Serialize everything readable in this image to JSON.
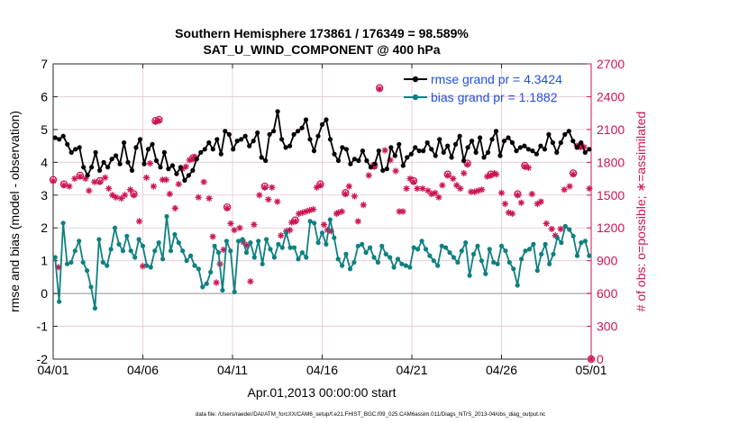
{
  "chart_data": {
    "type": "line",
    "title_line1": "Southern Hemisphere 173861 / 176349 = 98.589%",
    "title_line2": "SAT_U_WIND_COMPONENT @ 400 hPa",
    "ylabel_left": "rmse and bias (model - observation)",
    "ylabel_right": "# of obs: o=possible; ∗=assimilated",
    "xlabel": "Apr.01,2013 00:00:00 start",
    "footer": "data file: /Users/raeder/DAI/ATM_forcXX/CAM6_setup/f.e21.FHIST_BGC.f09_025.CAM6assim.011/Diags_NTrS_2013-04/obs_diag_output.nc",
    "xlim": [
      0,
      30
    ],
    "ylim_left": [
      -2,
      7
    ],
    "ylim_right": [
      0,
      2700
    ],
    "x_tick_values": [
      0,
      5,
      10,
      15,
      20,
      25,
      30
    ],
    "x_tick_labels": [
      "04/01",
      "04/06",
      "04/11",
      "04/16",
      "04/21",
      "04/26",
      "05/01"
    ],
    "y_left_ticks": [
      -2,
      -1,
      0,
      1,
      2,
      3,
      4,
      5,
      6,
      7
    ],
    "y_right_ticks": [
      0,
      300,
      600,
      900,
      1200,
      1500,
      1800,
      2100,
      2400,
      2700
    ],
    "colors": {
      "rmse": "#000000",
      "bias": "#0f8080",
      "obs": "#cc1454",
      "legend_text": "#1f4fe0",
      "zero_line": "#b4b4b4",
      "grid": "#e3c4d2"
    },
    "series": [
      {
        "name": "rmse grand pr = 4.3424",
        "values": [
          4.75,
          4.7,
          4.8,
          4.55,
          4.3,
          4.4,
          4.45,
          3.85,
          3.6,
          3.85,
          4.3,
          3.75,
          4.0,
          3.85,
          4.1,
          4.2,
          3.95,
          4.6,
          4.0,
          3.75,
          4.45,
          4.7,
          3.95,
          4.4,
          4.55,
          4.05,
          3.85,
          4.3,
          3.8,
          3.9,
          3.65,
          3.85,
          3.45,
          3.6,
          3.75,
          4.1,
          4.3,
          4.4,
          4.6,
          4.4,
          4.7,
          4.25,
          4.95,
          4.85,
          4.4,
          4.65,
          4.7,
          4.8,
          4.5,
          4.65,
          4.9,
          4.15,
          4.05,
          4.85,
          4.95,
          5.55,
          4.7,
          4.45,
          4.5,
          4.85,
          4.95,
          5.05,
          5.3,
          4.7,
          4.35,
          4.8,
          5.15,
          5.3,
          4.7,
          4.25,
          4.05,
          4.45,
          4.4,
          3.95,
          4.1,
          4.05,
          4.35,
          4.05,
          3.85,
          3.95,
          4.35,
          3.75,
          3.8,
          4.45,
          4.2,
          4.55,
          3.9,
          4.15,
          4.25,
          4.45,
          4.35,
          4.35,
          4.6,
          4.4,
          4.2,
          4.7,
          4.3,
          4.5,
          4.15,
          4.55,
          4.8,
          4.05,
          4.45,
          4.65,
          4.3,
          4.75,
          4.15,
          4.3,
          4.7,
          4.95,
          4.2,
          4.65,
          4.75,
          4.6,
          4.35,
          4.45,
          4.5,
          4.4,
          4.35,
          4.25,
          4.5,
          4.4,
          4.85,
          4.6,
          4.3,
          4.6,
          4.85,
          4.95,
          4.65,
          4.45,
          4.6,
          4.3,
          4.4
        ]
      },
      {
        "name": "bias grand pr = 1.1882",
        "values": [
          1.1,
          -0.25,
          2.15,
          0.9,
          0.95,
          1.3,
          1.6,
          0.95,
          0.7,
          0.2,
          -0.45,
          1.65,
          0.95,
          0.85,
          1.35,
          2.0,
          1.5,
          1.3,
          1.75,
          1.3,
          1.1,
          1.65,
          1.45,
          0.85,
          0.8,
          1.3,
          1.55,
          1.05,
          2.35,
          1.3,
          1.8,
          1.55,
          1.3,
          1.0,
          1.15,
          0.85,
          0.75,
          0.2,
          0.3,
          0.65,
          1.45,
          1.25,
          0.1,
          1.6,
          1.3,
          0.05,
          1.6,
          1.65,
          1.25,
          1.55,
          1.1,
          1.6,
          0.9,
          1.65,
          1.35,
          1.1,
          1.5,
          1.4,
          1.85,
          1.4,
          1.4,
          1.05,
          1.25,
          1.1,
          2.2,
          2.15,
          1.55,
          1.85,
          1.5,
          2.25,
          1.7,
          1.05,
          0.85,
          1.2,
          0.75,
          0.95,
          1.45,
          1.5,
          1.25,
          1.4,
          1.1,
          0.95,
          1.45,
          1.2,
          1.1,
          0.8,
          1.05,
          0.9,
          0.85,
          0.8,
          1.4,
          1.35,
          1.6,
          1.35,
          1.15,
          1.0,
          0.85,
          1.45,
          1.4,
          1.25,
          1.1,
          0.95,
          1.3,
          1.55,
          0.55,
          1.2,
          1.45,
          1.0,
          0.6,
          1.35,
          0.95,
          0.9,
          1.45,
          1.3,
          0.95,
          0.75,
          0.25,
          1.05,
          1.3,
          1.35,
          1.5,
          0.7,
          1.2,
          1.5,
          0.9,
          1.2,
          1.7,
          1.55,
          2.05,
          1.95,
          1.75,
          1.15,
          1.55,
          1.6,
          1.15
        ]
      }
    ],
    "obs_assimilated": [
      [
        0,
        1630
      ],
      [
        0.3,
        840
      ],
      [
        0.6,
        1590
      ],
      [
        0.9,
        1580
      ],
      [
        1.2,
        1650
      ],
      [
        1.5,
        1670
      ],
      [
        1.8,
        1650
      ],
      [
        2.0,
        1540
      ],
      [
        2.3,
        1620
      ],
      [
        2.6,
        1620
      ],
      [
        2.9,
        1660
      ],
      [
        3.1,
        1560
      ],
      [
        3.3,
        1500
      ],
      [
        3.5,
        1480
      ],
      [
        3.8,
        1470
      ],
      [
        4.0,
        1500
      ],
      [
        4.3,
        1550
      ],
      [
        4.5,
        1500
      ],
      [
        4.8,
        1260
      ],
      [
        5.0,
        850
      ],
      [
        5.2,
        1660
      ],
      [
        5.4,
        1790
      ],
      [
        5.6,
        1580
      ],
      [
        5.7,
        2170
      ],
      [
        5.9,
        2180
      ],
      [
        6.1,
        1640
      ],
      [
        6.3,
        1640
      ],
      [
        6.5,
        1510
      ],
      [
        6.8,
        1380
      ],
      [
        7.0,
        1600
      ],
      [
        7.2,
        1740
      ],
      [
        7.4,
        1760
      ],
      [
        7.6,
        1820
      ],
      [
        7.8,
        1830
      ],
      [
        7.9,
        1850
      ],
      [
        8.1,
        1480
      ],
      [
        8.4,
        1620
      ],
      [
        8.7,
        1470
      ],
      [
        8.9,
        1120
      ],
      [
        9.1,
        700
      ],
      [
        9.3,
        870
      ],
      [
        9.5,
        1000
      ],
      [
        9.7,
        1380
      ],
      [
        9.9,
        1240
      ],
      [
        10.1,
        1180
      ],
      [
        10.4,
        1200
      ],
      [
        10.6,
        1070
      ],
      [
        10.8,
        1040
      ],
      [
        11.0,
        710
      ],
      [
        11.2,
        1230
      ],
      [
        11.5,
        1500
      ],
      [
        11.8,
        1570
      ],
      [
        12.0,
        1460
      ],
      [
        12.2,
        1570
      ],
      [
        12.5,
        1440
      ],
      [
        12.7,
        1130
      ],
      [
        13.0,
        1170
      ],
      [
        13.2,
        1180
      ],
      [
        13.3,
        1250
      ],
      [
        13.5,
        1260
      ],
      [
        13.7,
        1330
      ],
      [
        13.9,
        1340
      ],
      [
        14.1,
        1350
      ],
      [
        14.3,
        1360
      ],
      [
        14.5,
        1370
      ],
      [
        14.7,
        1570
      ],
      [
        14.9,
        1590
      ],
      [
        15.1,
        1230
      ],
      [
        15.3,
        1180
      ],
      [
        15.5,
        1170
      ],
      [
        15.8,
        1330
      ],
      [
        15.9,
        1340
      ],
      [
        16.1,
        1350
      ],
      [
        16.3,
        1510
      ],
      [
        16.5,
        1580
      ],
      [
        16.8,
        1490
      ],
      [
        17.0,
        1260
      ],
      [
        17.3,
        1410
      ],
      [
        17.6,
        1680
      ],
      [
        17.9,
        1760
      ],
      [
        18.2,
        2470
      ],
      [
        18.5,
        1910
      ],
      [
        18.8,
        1820
      ],
      [
        19.1,
        1720
      ],
      [
        19.3,
        1350
      ],
      [
        19.5,
        1350
      ],
      [
        19.7,
        1560
      ],
      [
        19.9,
        1650
      ],
      [
        20.1,
        1620
      ],
      [
        20.3,
        1560
      ],
      [
        20.6,
        1560
      ],
      [
        20.9,
        1540
      ],
      [
        21.1,
        1510
      ],
      [
        21.3,
        1520
      ],
      [
        21.5,
        1480
      ],
      [
        21.7,
        1590
      ],
      [
        22.0,
        1680
      ],
      [
        22.3,
        1650
      ],
      [
        22.5,
        1590
      ],
      [
        22.7,
        1560
      ],
      [
        22.9,
        1700
      ],
      [
        23.1,
        1780
      ],
      [
        23.3,
        1530
      ],
      [
        23.5,
        1530
      ],
      [
        23.7,
        1540
      ],
      [
        23.9,
        1550
      ],
      [
        24.2,
        1670
      ],
      [
        24.4,
        1680
      ],
      [
        24.6,
        1700
      ],
      [
        24.7,
        1690
      ],
      [
        25.0,
        1520
      ],
      [
        25.2,
        1420
      ],
      [
        25.4,
        1340
      ],
      [
        25.6,
        1330
      ],
      [
        25.9,
        1500
      ],
      [
        26.1,
        1430
      ],
      [
        26.3,
        1760
      ],
      [
        26.5,
        1750
      ],
      [
        26.7,
        1510
      ],
      [
        27.0,
        1420
      ],
      [
        27.2,
        1440
      ],
      [
        27.5,
        1240
      ],
      [
        27.8,
        1190
      ],
      [
        28.0,
        1130
      ],
      [
        28.3,
        1190
      ],
      [
        28.5,
        1550
      ],
      [
        28.8,
        1580
      ],
      [
        29.0,
        1690
      ],
      [
        29.2,
        1950
      ],
      [
        29.4,
        1940
      ],
      [
        29.6,
        1940
      ],
      [
        29.9,
        1560
      ],
      [
        30,
        0
      ]
    ],
    "obs_possible": [
      [
        0,
        1640
      ],
      [
        0.6,
        1600
      ],
      [
        1.5,
        1680
      ],
      [
        2.6,
        1630
      ],
      [
        4.5,
        1510
      ],
      [
        5.7,
        2180
      ],
      [
        5.9,
        2190
      ],
      [
        7.8,
        1840
      ],
      [
        9.7,
        1390
      ],
      [
        11.8,
        1580
      ],
      [
        13.5,
        1270
      ],
      [
        14.9,
        1600
      ],
      [
        16.3,
        1520
      ],
      [
        17.9,
        1770
      ],
      [
        18.2,
        2480
      ],
      [
        20.1,
        1630
      ],
      [
        22.0,
        1690
      ],
      [
        23.1,
        1790
      ],
      [
        24.4,
        1690
      ],
      [
        25.9,
        1510
      ],
      [
        26.3,
        1770
      ],
      [
        29.0,
        1700
      ],
      [
        29.4,
        1950
      ],
      [
        30,
        0
      ]
    ]
  }
}
